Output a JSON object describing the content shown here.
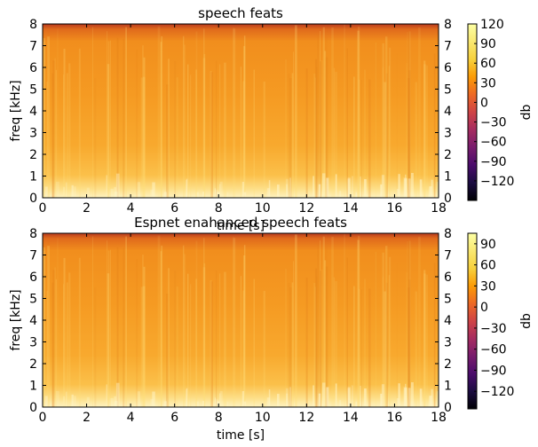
{
  "chart_data": [
    {
      "type": "heatmap",
      "title": "speech feats",
      "xlabel": "time [s]",
      "ylabel": "freq [kHz]",
      "xlim": [
        0,
        18
      ],
      "ylim": [
        0,
        8
      ],
      "x_ticks": [
        0,
        2,
        4,
        6,
        8,
        10,
        12,
        14,
        16,
        18
      ],
      "y_ticks": [
        0,
        1,
        2,
        3,
        4,
        5,
        6,
        7,
        8
      ],
      "colorbar": {
        "label": "db",
        "range": [
          -150,
          120
        ],
        "ticks": [
          120,
          90,
          60,
          30,
          0,
          -30,
          -60,
          -90,
          -120
        ],
        "colormap": "inferno"
      },
      "colors": {
        "low_freq": "#fff0b0",
        "mid": "#f9b12a",
        "high_freq": "#f08a18",
        "top_band": "#c8401c"
      }
    },
    {
      "type": "heatmap",
      "title": "Espnet enahanced speech feats",
      "xlabel": "time [s]",
      "ylabel": "freq [kHz]",
      "xlim": [
        0,
        18
      ],
      "ylim": [
        0,
        8
      ],
      "x_ticks": [
        0,
        2,
        4,
        6,
        8,
        10,
        12,
        14,
        16,
        18
      ],
      "y_ticks": [
        0,
        1,
        2,
        3,
        4,
        5,
        6,
        7,
        8
      ],
      "colorbar": {
        "label": "db",
        "range": [
          -145,
          105
        ],
        "ticks": [
          90,
          60,
          30,
          0,
          -30,
          -60,
          -90,
          -120
        ],
        "colormap": "inferno"
      },
      "colors": {
        "low_freq": "#fff0b0",
        "mid": "#f9b12a",
        "high_freq": "#f08a18",
        "top_band": "#c8401c"
      }
    }
  ]
}
